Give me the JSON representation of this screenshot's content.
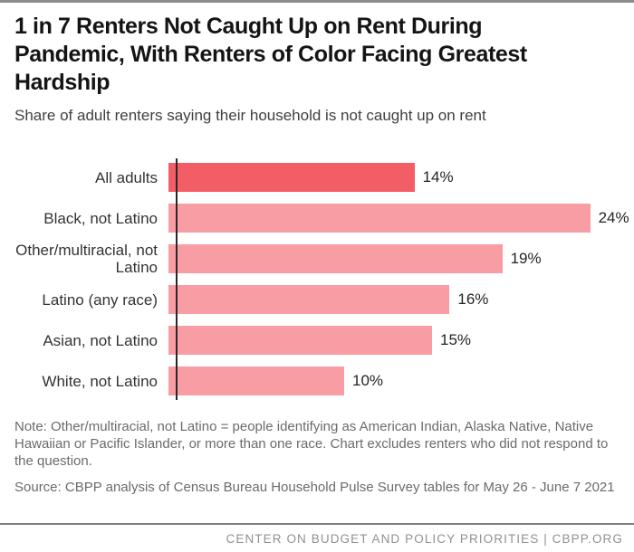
{
  "page": {
    "title": "1 in 7 Renters Not Caught Up on Rent During Pandemic, With Renters of Color Facing Greatest Hardship",
    "subtitle": "Share of adult renters saying their household is not caught up on rent",
    "note": "Note: Other/multiracial, not Latino = people identifying as American Indian, Alaska Native, Native Hawaiian or Pacific Islander, or more than one race. Chart excludes renters who did not respond to the question.",
    "source": "Source: CBPP analysis of Census Bureau Household Pulse Survey tables for May 26 - June 7 2021",
    "footer": "CENTER ON BUDGET AND POLICY PRIORITIES | CBPP.ORG"
  },
  "chart_data": {
    "type": "bar",
    "orientation": "horizontal",
    "title": "1 in 7 Renters Not Caught Up on Rent During Pandemic, With Renters of Color Facing Greatest Hardship",
    "subtitle": "Share of adult renters saying their household is not caught up on rent",
    "categories": [
      "All adults",
      "Black, not Latino",
      "Other/multiracial, not Latino",
      "Latino (any race)",
      "Asian, not Latino",
      "White, not Latino"
    ],
    "values": [
      14,
      24,
      19,
      16,
      15,
      10
    ],
    "value_labels": [
      "14%",
      "24%",
      "19%",
      "16%",
      "15%",
      "10%"
    ],
    "xlabel": "",
    "ylabel": "",
    "xlim": [
      0,
      26
    ],
    "grid": false,
    "legend": "none",
    "highlight_index": 0,
    "colors": {
      "highlight": "#f25d66",
      "base": "#f89da3",
      "axis": "#2b2728"
    }
  }
}
